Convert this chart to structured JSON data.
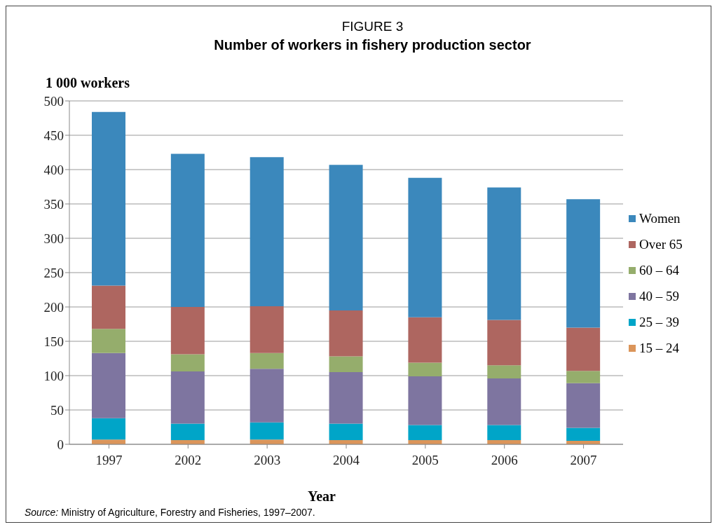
{
  "chart_data": {
    "type": "bar",
    "title": "FIGURE 3",
    "subtitle": "Number of workers in fishery production sector",
    "ylabel": "1 000 workers",
    "xlabel": "Year",
    "annotations": [
      "Source: Ministry of Agriculture, Forestry and Fisheries, 1997–2007."
    ],
    "categories": [
      "1997",
      "2002",
      "2003",
      "2004",
      "2005",
      "2006",
      "2007"
    ],
    "stacked": true,
    "ylim": [
      0,
      500
    ],
    "yticks": [
      0,
      50,
      100,
      150,
      200,
      250,
      300,
      350,
      400,
      450,
      500
    ],
    "grid": "y",
    "legend": "right",
    "series": [
      {
        "name": "15 – 24",
        "color": "#db955a",
        "values": [
          7,
          6,
          7,
          6,
          6,
          6,
          5
        ]
      },
      {
        "name": "25 – 39",
        "color": "#00a5c8",
        "values": [
          31,
          24,
          25,
          24,
          22,
          22,
          19
        ]
      },
      {
        "name": "40 – 59",
        "color": "#7e75a0",
        "values": [
          95,
          76,
          78,
          75,
          71,
          68,
          65
        ]
      },
      {
        "name": "60 – 64",
        "color": "#95ad6c",
        "values": [
          35,
          25,
          23,
          23,
          20,
          19,
          18
        ]
      },
      {
        "name": "Over 65",
        "color": "#ae6660",
        "values": [
          63,
          69,
          68,
          67,
          66,
          66,
          63
        ]
      },
      {
        "name": "Women",
        "color": "#3b88bc",
        "values": [
          253,
          223,
          217,
          212,
          203,
          193,
          187
        ]
      }
    ]
  }
}
